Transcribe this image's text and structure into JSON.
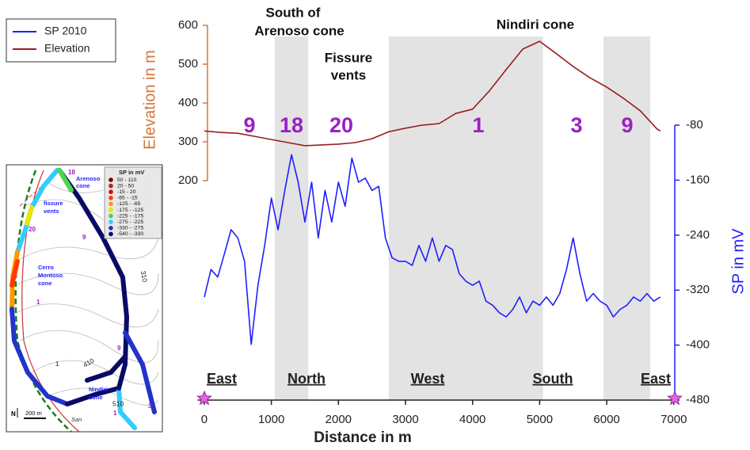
{
  "chart_data": {
    "type": "line",
    "x_label": "Distance in m",
    "y_label": "Elevation in m",
    "y2_label": "SP in mV",
    "xlim": [
      -100,
      7050
    ],
    "xticks": [
      0,
      1000,
      2000,
      3000,
      4000,
      5000,
      6000,
      7000
    ],
    "ylim": [
      200,
      600
    ],
    "yticks": [
      200,
      300,
      400,
      500,
      600
    ],
    "y2lim": [
      -480,
      -80
    ],
    "y2ticks": [
      -80,
      -160,
      -240,
      -320,
      -400,
      -480
    ],
    "axis_colors": {
      "y": "#d4763b",
      "y2": "#1f1fff",
      "x": "#222222"
    },
    "shade_color": "#e3e3e3",
    "shaded_x_ranges": [
      [
        1050,
        1550
      ],
      [
        2750,
        5050
      ],
      [
        5950,
        6650
      ]
    ],
    "series": [
      {
        "name": "SP 2010",
        "color": "#1f1fff",
        "axis": "y2",
        "x": [
          0,
          100,
          200,
          300,
          400,
          500,
          600,
          700,
          800,
          900,
          1000,
          1100,
          1200,
          1300,
          1400,
          1500,
          1600,
          1700,
          1800,
          1900,
          2000,
          2100,
          2200,
          2300,
          2400,
          2500,
          2600,
          2700,
          2800,
          2900,
          3000,
          3100,
          3200,
          3300,
          3400,
          3500,
          3600,
          3700,
          3800,
          3900,
          4000,
          4100,
          4200,
          4300,
          4400,
          4500,
          4600,
          4700,
          4800,
          4900,
          5000,
          5100,
          5200,
          5300,
          5400,
          5500,
          5600,
          5700,
          5800,
          5900,
          6000,
          6100,
          6200,
          6300,
          6400,
          6500,
          6600,
          6700,
          6800
        ],
        "values": [
          -330,
          -290,
          -301,
          -267,
          -232,
          -244,
          -278,
          -399,
          -313,
          -255,
          -186,
          -232,
          -175,
          -123,
          -163,
          -221,
          -163,
          -244,
          -175,
          -221,
          -163,
          -198,
          -128,
          -163,
          -157,
          -175,
          -169,
          -244,
          -273,
          -278,
          -278,
          -284,
          -255,
          -278,
          -244,
          -278,
          -255,
          -261,
          -296,
          -307,
          -313,
          -307,
          -336,
          -342,
          -353,
          -359,
          -348,
          -330,
          -353,
          -336,
          -342,
          -330,
          -342,
          -325,
          -290,
          -244,
          -296,
          -336,
          -325,
          -336,
          -342,
          -359,
          -348,
          -342,
          -330,
          -336,
          -325,
          -336,
          -330
        ]
      },
      {
        "name": "Elevation",
        "color": "#9b1c1c",
        "axis": "y",
        "x": [
          0,
          250,
          500,
          750,
          1000,
          1250,
          1500,
          1750,
          2000,
          2250,
          2500,
          2750,
          3000,
          3250,
          3500,
          3750,
          4000,
          4250,
          4500,
          4750,
          5000,
          5250,
          5500,
          5750,
          6000,
          6250,
          6500,
          6750,
          6800
        ],
        "values": [
          328,
          324,
          322,
          314,
          306,
          298,
          290,
          292,
          294,
          298,
          308,
          326,
          335,
          343,
          347,
          373,
          384,
          431,
          486,
          539,
          559,
          527,
          494,
          465,
          441,
          412,
          380,
          333,
          328
        ]
      }
    ],
    "annotations": {
      "south_of_arenoso": [
        "South of",
        "Arenoso cone"
      ],
      "fissure_vents": [
        "Fissure",
        "vents"
      ],
      "nindiri": "Nindiri cone",
      "segment_numbers": [
        "9",
        "18",
        "20",
        "1",
        "3",
        "9"
      ],
      "directions": [
        "East",
        "North",
        "West",
        "South",
        "East"
      ]
    }
  },
  "inset_map": {
    "legend_title": "SP in mV",
    "classes": [
      {
        "label": "50 - 110",
        "color": "#7a0000"
      },
      {
        "label": "20 - 50",
        "color": "#a52a2a"
      },
      {
        "label": "-15 - 20",
        "color": "#e00000"
      },
      {
        "label": "-65 - -15",
        "color": "#ff3b00"
      },
      {
        "label": "-125 - -65",
        "color": "#ff9900"
      },
      {
        "label": "-175 - -125",
        "color": "#e6e600"
      },
      {
        "label": "-225 - -175",
        "color": "#4cd64c"
      },
      {
        "label": "-275 - -225",
        "color": "#33ccff"
      },
      {
        "label": "-330 - -275",
        "color": "#2233cc"
      },
      {
        "label": "-540 - -330",
        "color": "#0a0a66"
      }
    ],
    "place_labels": {
      "arenoso": [
        "Arenoso",
        "cone"
      ],
      "fissure": [
        "fissure",
        "vents"
      ],
      "cerro": [
        "Cerro",
        "Montoso",
        "cone"
      ],
      "nindiri": [
        "Nindiri",
        "cone"
      ],
      "san": "San"
    },
    "contour_labels": [
      "310",
      "410",
      "510"
    ],
    "segment_numbers": [
      "18",
      "20",
      "9",
      "1",
      "9",
      "1",
      "1",
      "3"
    ],
    "scale": "200 m",
    "north": "N"
  }
}
